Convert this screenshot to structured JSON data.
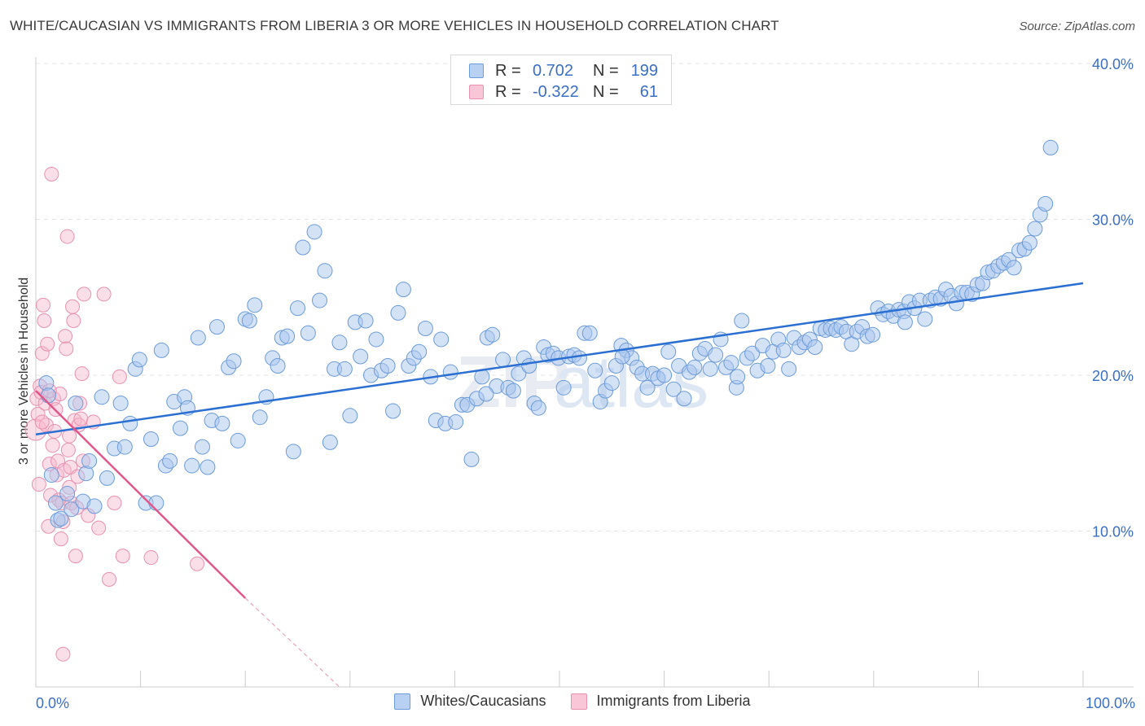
{
  "header": {
    "title": "WHITE/CAUCASIAN VS IMMIGRANTS FROM LIBERIA 3 OR MORE VEHICLES IN HOUSEHOLD CORRELATION CHART",
    "source": "Source: ZipAtlas.com"
  },
  "watermark": {
    "text1": "ZIP",
    "text2": "atlas"
  },
  "legend_top": {
    "rows": [
      {
        "r_label": "R =",
        "r_value": "0.702",
        "n_label": "N =",
        "n_value": "199"
      },
      {
        "r_label": "R =",
        "r_value": "-0.322",
        "n_label": "N =",
        "n_value": "61"
      }
    ]
  },
  "legend_bottom": {
    "items": [
      {
        "label": "Whites/Caucasians"
      },
      {
        "label": "Immigrants from Liberia"
      }
    ]
  },
  "chart_data": {
    "type": "scatter",
    "title": "WHITE/CAUCASIAN VS IMMIGRANTS FROM LIBERIA 3 OR MORE VEHICLES IN HOUSEHOLD CORRELATION CHART",
    "ylabel": "3 or more Vehicles in Household",
    "xlim": [
      0,
      100
    ],
    "ylim": [
      0,
      40
    ],
    "x_tick_labels": [
      "0.0%",
      "100.0%"
    ],
    "y_tick_labels": [
      "10.0%",
      "20.0%",
      "30.0%",
      "40.0%"
    ],
    "y_ticks": [
      10,
      20,
      30,
      40
    ],
    "grid": true,
    "legend_placement": "top-center",
    "colors": {
      "blue_fill": "#a9c6ee",
      "blue_stroke": "#6c9bd8",
      "blue_line": "#2a6fd1",
      "pink_fill": "#f6b9cd",
      "pink_stroke": "#e891b0",
      "pink_line": "#e0588b",
      "tick_label": "#3b6fc4"
    },
    "series": [
      {
        "name": "Whites/Caucasians",
        "r": 0.702,
        "n": 199,
        "trend": {
          "x": [
            0,
            100
          ],
          "y": [
            16.2,
            25.9
          ]
        },
        "points": [
          [
            1.0,
            19.5
          ],
          [
            1.2,
            18.7
          ],
          [
            1.5,
            13.6
          ],
          [
            1.9,
            11.8
          ],
          [
            2.1,
            10.7
          ],
          [
            2.4,
            10.8
          ],
          [
            3.0,
            12.4
          ],
          [
            3.4,
            11.4
          ],
          [
            3.8,
            18.2
          ],
          [
            4.5,
            11.9
          ],
          [
            4.8,
            13.7
          ],
          [
            5.1,
            14.5
          ],
          [
            5.6,
            11.6
          ],
          [
            6.3,
            18.6
          ],
          [
            6.8,
            13.4
          ],
          [
            7.5,
            15.3
          ],
          [
            8.1,
            18.2
          ],
          [
            8.5,
            15.4
          ],
          [
            9.0,
            16.9
          ],
          [
            9.5,
            20.4
          ],
          [
            9.9,
            21.0
          ],
          [
            10.5,
            11.8
          ],
          [
            11.0,
            15.9
          ],
          [
            11.5,
            11.8
          ],
          [
            12.0,
            21.6
          ],
          [
            12.4,
            14.2
          ],
          [
            12.8,
            14.5
          ],
          [
            13.2,
            18.3
          ],
          [
            13.8,
            16.6
          ],
          [
            14.2,
            18.6
          ],
          [
            14.5,
            17.9
          ],
          [
            14.9,
            14.2
          ],
          [
            15.5,
            22.4
          ],
          [
            15.9,
            15.4
          ],
          [
            16.4,
            14.1
          ],
          [
            16.8,
            17.1
          ],
          [
            17.3,
            23.1
          ],
          [
            17.8,
            16.9
          ],
          [
            18.4,
            20.5
          ],
          [
            18.9,
            20.9
          ],
          [
            19.3,
            15.8
          ],
          [
            20.0,
            23.6
          ],
          [
            20.4,
            23.5
          ],
          [
            20.9,
            24.5
          ],
          [
            21.4,
            17.3
          ],
          [
            22.0,
            18.6
          ],
          [
            22.6,
            21.1
          ],
          [
            23.1,
            20.6
          ],
          [
            23.5,
            22.4
          ],
          [
            24.0,
            22.5
          ],
          [
            24.6,
            15.1
          ],
          [
            25.0,
            24.3
          ],
          [
            25.5,
            28.2
          ],
          [
            26.0,
            22.7
          ],
          [
            26.6,
            29.2
          ],
          [
            27.1,
            24.8
          ],
          [
            27.6,
            26.7
          ],
          [
            28.1,
            15.7
          ],
          [
            28.5,
            20.4
          ],
          [
            29.0,
            22.1
          ],
          [
            29.5,
            20.4
          ],
          [
            30.0,
            17.4
          ],
          [
            30.5,
            23.4
          ],
          [
            31.0,
            21.2
          ],
          [
            31.5,
            23.5
          ],
          [
            32.0,
            20.0
          ],
          [
            32.5,
            22.3
          ],
          [
            33.0,
            20.3
          ],
          [
            33.6,
            20.6
          ],
          [
            34.1,
            17.7
          ],
          [
            34.6,
            24.0
          ],
          [
            35.1,
            25.5
          ],
          [
            35.6,
            20.6
          ],
          [
            36.1,
            21.1
          ],
          [
            36.6,
            21.5
          ],
          [
            37.2,
            23.0
          ],
          [
            37.7,
            19.9
          ],
          [
            38.2,
            17.1
          ],
          [
            38.7,
            22.3
          ],
          [
            39.1,
            16.9
          ],
          [
            39.6,
            20.2
          ],
          [
            40.1,
            17.0
          ],
          [
            40.7,
            18.1
          ],
          [
            41.2,
            18.1
          ],
          [
            41.6,
            14.6
          ],
          [
            42.1,
            18.5
          ],
          [
            42.6,
            19.9
          ],
          [
            43.1,
            22.4
          ],
          [
            43.6,
            22.6
          ],
          [
            44.0,
            19.3
          ],
          [
            44.6,
            21.0
          ],
          [
            45.1,
            19.2
          ],
          [
            45.6,
            19.0
          ],
          [
            46.1,
            20.1
          ],
          [
            46.6,
            21.1
          ],
          [
            47.1,
            20.6
          ],
          [
            47.6,
            18.2
          ],
          [
            48.0,
            17.9
          ],
          [
            48.5,
            21.8
          ],
          [
            48.9,
            21.3
          ],
          [
            49.4,
            21.4
          ],
          [
            49.9,
            21.1
          ],
          [
            50.4,
            19.2
          ],
          [
            50.9,
            21.2
          ],
          [
            51.4,
            21.3
          ],
          [
            51.9,
            21.1
          ],
          [
            52.4,
            22.7
          ],
          [
            52.9,
            22.7
          ],
          [
            53.4,
            20.3
          ],
          [
            53.9,
            18.3
          ],
          [
            54.4,
            19.0
          ],
          [
            55.0,
            19.5
          ],
          [
            55.4,
            20.6
          ],
          [
            55.9,
            21.9
          ],
          [
            56.4,
            21.6
          ],
          [
            56.9,
            21.1
          ],
          [
            57.4,
            20.5
          ],
          [
            57.9,
            20.1
          ],
          [
            58.4,
            19.2
          ],
          [
            58.9,
            20.1
          ],
          [
            59.4,
            19.8
          ],
          [
            60.0,
            20.0
          ],
          [
            60.4,
            21.5
          ],
          [
            60.9,
            19.1
          ],
          [
            61.4,
            20.6
          ],
          [
            61.9,
            18.5
          ],
          [
            62.4,
            20.2
          ],
          [
            62.9,
            20.5
          ],
          [
            63.4,
            21.4
          ],
          [
            63.9,
            21.7
          ],
          [
            64.4,
            20.4
          ],
          [
            64.9,
            21.3
          ],
          [
            65.4,
            22.3
          ],
          [
            65.9,
            20.5
          ],
          [
            66.4,
            20.8
          ],
          [
            66.9,
            19.2
          ],
          [
            67.4,
            23.5
          ],
          [
            67.9,
            21.1
          ],
          [
            68.4,
            21.4
          ],
          [
            68.9,
            20.3
          ],
          [
            69.4,
            21.9
          ],
          [
            69.9,
            20.6
          ],
          [
            70.4,
            21.5
          ],
          [
            70.9,
            22.3
          ],
          [
            71.4,
            21.6
          ],
          [
            71.9,
            20.4
          ],
          [
            72.4,
            22.4
          ],
          [
            72.9,
            21.8
          ],
          [
            73.4,
            22.1
          ],
          [
            73.9,
            22.3
          ],
          [
            74.4,
            21.8
          ],
          [
            74.9,
            23.0
          ],
          [
            75.4,
            22.9
          ],
          [
            75.9,
            23.0
          ],
          [
            76.4,
            22.9
          ],
          [
            76.9,
            23.1
          ],
          [
            77.4,
            22.8
          ],
          [
            77.9,
            22.0
          ],
          [
            78.4,
            22.8
          ],
          [
            78.9,
            23.1
          ],
          [
            79.4,
            22.5
          ],
          [
            79.9,
            22.6
          ],
          [
            80.4,
            24.3
          ],
          [
            80.9,
            23.9
          ],
          [
            81.4,
            24.1
          ],
          [
            81.9,
            23.8
          ],
          [
            82.4,
            24.2
          ],
          [
            82.9,
            24.1
          ],
          [
            83.4,
            24.7
          ],
          [
            83.9,
            24.3
          ],
          [
            84.4,
            24.8
          ],
          [
            84.9,
            23.6
          ],
          [
            85.4,
            24.8
          ],
          [
            85.9,
            25.0
          ],
          [
            86.4,
            24.9
          ],
          [
            86.9,
            25.5
          ],
          [
            87.4,
            25.1
          ],
          [
            87.9,
            24.6
          ],
          [
            88.4,
            25.3
          ],
          [
            88.9,
            25.3
          ],
          [
            89.4,
            25.2
          ],
          [
            89.9,
            25.8
          ],
          [
            90.4,
            25.9
          ],
          [
            90.9,
            26.6
          ],
          [
            91.4,
            26.7
          ],
          [
            91.9,
            27.0
          ],
          [
            92.4,
            27.2
          ],
          [
            92.9,
            27.4
          ],
          [
            93.4,
            26.9
          ],
          [
            93.9,
            28.0
          ],
          [
            94.4,
            28.1
          ],
          [
            94.9,
            28.5
          ],
          [
            95.4,
            29.4
          ],
          [
            95.9,
            30.3
          ],
          [
            96.4,
            31.0
          ],
          [
            96.9,
            34.6
          ],
          [
            67.0,
            19.9
          ],
          [
            43.0,
            18.8
          ],
          [
            56.0,
            21.2
          ],
          [
            83.0,
            23.4
          ]
        ]
      },
      {
        "name": "Immigrants from Liberia",
        "r": -0.322,
        "n": 61,
        "trend": {
          "x": [
            0,
            20
          ],
          "y": [
            19.0,
            5.7
          ]
        },
        "trend_dashed_ext": {
          "x": [
            20,
            29
          ],
          "y": [
            5.7,
            0
          ]
        },
        "points": [
          [
            0.0,
            16.5
          ],
          [
            0.1,
            18.5
          ],
          [
            0.2,
            17.5
          ],
          [
            0.3,
            13.0
          ],
          [
            0.4,
            19.3
          ],
          [
            0.5,
            18.9
          ],
          [
            0.6,
            21.4
          ],
          [
            0.7,
            24.5
          ],
          [
            0.8,
            23.5
          ],
          [
            0.9,
            18.2
          ],
          [
            1.0,
            16.8
          ],
          [
            1.1,
            22.0
          ],
          [
            1.2,
            10.3
          ],
          [
            1.3,
            14.3
          ],
          [
            1.4,
            12.3
          ],
          [
            1.5,
            32.9
          ],
          [
            1.6,
            15.5
          ],
          [
            1.7,
            18.5
          ],
          [
            1.8,
            16.4
          ],
          [
            1.9,
            17.8
          ],
          [
            2.0,
            13.6
          ],
          [
            2.1,
            14.5
          ],
          [
            2.2,
            12.0
          ],
          [
            2.3,
            18.8
          ],
          [
            2.4,
            9.5
          ],
          [
            2.5,
            11.8
          ],
          [
            2.6,
            10.6
          ],
          [
            2.7,
            13.9
          ],
          [
            2.8,
            22.5
          ],
          [
            2.9,
            21.7
          ],
          [
            3.0,
            28.9
          ],
          [
            3.1,
            15.2
          ],
          [
            3.2,
            12.8
          ],
          [
            3.3,
            14.1
          ],
          [
            3.4,
            11.8
          ],
          [
            3.5,
            24.4
          ],
          [
            3.6,
            23.5
          ],
          [
            3.7,
            17.1
          ],
          [
            3.8,
            8.4
          ],
          [
            3.9,
            11.5
          ],
          [
            4.0,
            13.5
          ],
          [
            4.1,
            16.8
          ],
          [
            4.2,
            18.2
          ],
          [
            4.3,
            17.2
          ],
          [
            4.4,
            20.1
          ],
          [
            4.5,
            14.5
          ],
          [
            4.6,
            25.2
          ],
          [
            5.0,
            11.0
          ],
          [
            5.5,
            17.0
          ],
          [
            6.0,
            10.2
          ],
          [
            6.5,
            25.2
          ],
          [
            7.0,
            6.9
          ],
          [
            7.5,
            11.8
          ],
          [
            8.0,
            19.9
          ],
          [
            8.3,
            8.4
          ],
          [
            11.0,
            8.3
          ],
          [
            15.4,
            7.9
          ],
          [
            2.6,
            2.1
          ],
          [
            1.3,
            19.0
          ],
          [
            0.6,
            17.0
          ],
          [
            3.2,
            16.1
          ]
        ]
      }
    ]
  }
}
